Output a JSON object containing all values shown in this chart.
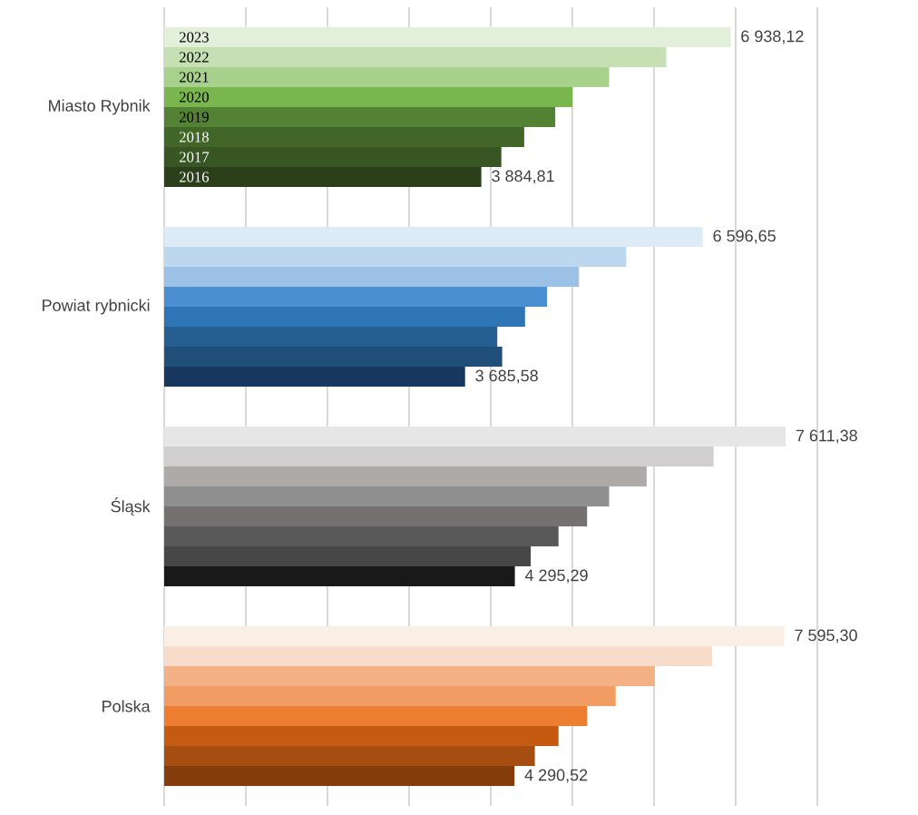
{
  "chart_data": {
    "type": "bar",
    "orientation": "horizontal",
    "categories": [
      "Miasto Rybnik",
      "Powiat rybnicki",
      "Śląsk",
      "Polska"
    ],
    "xlim": [
      0,
      8000
    ],
    "xticks": [
      {
        "value": 0,
        "label": null
      },
      {
        "value": 1000,
        "label": null
      },
      {
        "value": 2000,
        "label": null
      },
      {
        "value": 3000,
        "label": null
      },
      {
        "value": 4000,
        "label": null
      },
      {
        "value": 5000,
        "label": null
      },
      {
        "value": 6000,
        "label": null
      },
      {
        "value": 7000,
        "label": null
      },
      {
        "value": 8000,
        "label": null
      }
    ],
    "grid": "x",
    "tick_labels": "y",
    "series": [
      {
        "name": "2023",
        "colors": [
          "#e2efda",
          "#ddebf7",
          "#e6e6e6",
          "#fbeee5"
        ],
        "values": [
          6938.12,
          6596.65,
          7611.38,
          7595.3
        ],
        "value_labels": [
          "6 938,12",
          "6 596,65",
          "7 611,38",
          "7 595,30"
        ]
      },
      {
        "name": "2022",
        "colors": [
          "#c6e0b4",
          "#bdd7ee",
          "#d0cece",
          "#f8dcca"
        ],
        "values": [
          6150,
          5660,
          6730,
          6710
        ]
      },
      {
        "name": "2021",
        "colors": [
          "#a9d18e",
          "#9bc2e6",
          "#aeaaaa",
          "#f4b183"
        ],
        "values": [
          5450,
          5080,
          5910,
          6010
        ]
      },
      {
        "name": "2020",
        "colors": [
          "#7ab64e",
          "#4a90d0",
          "#8f8f8f",
          "#f19c63"
        ],
        "values": [
          5000,
          4690,
          5450,
          5530
        ]
      },
      {
        "name": "2019",
        "colors": [
          "#548235",
          "#2e75b6",
          "#767171",
          "#ed7d31"
        ],
        "values": [
          4790,
          4420,
          5180,
          5180
        ]
      },
      {
        "name": "2018",
        "colors": [
          "#426628",
          "#255e91",
          "#595959",
          "#c55a11"
        ],
        "values": [
          4410,
          4080,
          4830,
          4830
        ]
      },
      {
        "name": "2017",
        "colors": [
          "#375623",
          "#1f4e79",
          "#474747",
          "#a64d11"
        ],
        "values": [
          4130,
          4140,
          4490,
          4540
        ]
      },
      {
        "name": "2016",
        "colors": [
          "#2a3f1a",
          "#17375e",
          "#191919",
          "#843c0c"
        ],
        "values": [
          3884.81,
          3685.58,
          4295.29,
          4290.52
        ],
        "value_labels": [
          "3 884,81",
          "3 685,58",
          "4 295,29",
          "4 290,52"
        ]
      }
    ]
  }
}
